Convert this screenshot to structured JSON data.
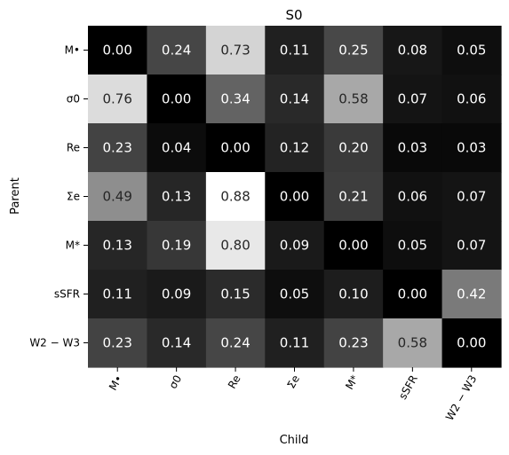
{
  "chart_data": {
    "type": "heatmap",
    "title": "S0",
    "xlabel": "Child",
    "ylabel": "Parent",
    "colormap": "gray",
    "vmin": 0.0,
    "vmax": 0.88,
    "x_categories": [
      "M•",
      "σ0",
      "Re",
      "Σe",
      "M*",
      "sSFR",
      "W2 − W3"
    ],
    "y_categories": [
      "M•",
      "σ0",
      "Re",
      "Σe",
      "M*",
      "sSFR",
      "W2 − W3"
    ],
    "values": [
      [
        0.0,
        0.24,
        0.73,
        0.11,
        0.25,
        0.08,
        0.05
      ],
      [
        0.76,
        0.0,
        0.34,
        0.14,
        0.58,
        0.07,
        0.06
      ],
      [
        0.23,
        0.04,
        0.0,
        0.12,
        0.2,
        0.03,
        0.03
      ],
      [
        0.49,
        0.13,
        0.88,
        0.0,
        0.21,
        0.06,
        0.07
      ],
      [
        0.13,
        0.19,
        0.8,
        0.09,
        0.0,
        0.05,
        0.07
      ],
      [
        0.11,
        0.09,
        0.15,
        0.05,
        0.1,
        0.0,
        0.42
      ],
      [
        0.23,
        0.14,
        0.24,
        0.11,
        0.23,
        0.58,
        0.0
      ]
    ],
    "cell_labels": [
      [
        "0.00",
        "0.24",
        "0.73",
        "0.11",
        "0.25",
        "0.08",
        "0.05"
      ],
      [
        "0.76",
        "0.00",
        "0.34",
        "0.14",
        "0.58",
        "0.07",
        "0.06"
      ],
      [
        "0.23",
        "0.04",
        "0.00",
        "0.12",
        "0.20",
        "0.03",
        "0.03"
      ],
      [
        "0.49",
        "0.13",
        "0.88",
        "0.00",
        "0.21",
        "0.06",
        "0.07"
      ],
      [
        "0.13",
        "0.19",
        "0.80",
        "0.09",
        "0.00",
        "0.05",
        "0.07"
      ],
      [
        "0.11",
        "0.09",
        "0.15",
        "0.05",
        "0.10",
        "0.00",
        "0.42"
      ],
      [
        "0.23",
        "0.14",
        "0.24",
        "0.11",
        "0.23",
        "0.58",
        "0.00"
      ]
    ],
    "grid": false,
    "colorbar": false
  }
}
